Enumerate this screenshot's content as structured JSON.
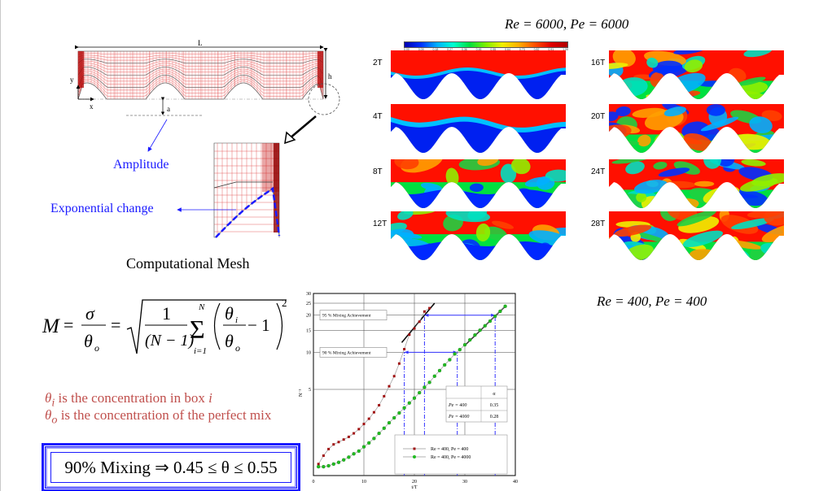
{
  "headings": {
    "high_re": "Re = 6000, Pe = 6000",
    "low_re": "Re = 400, Pe = 400",
    "mesh_caption": "Computational Mesh"
  },
  "mesh": {
    "length_label": "L",
    "height_label": "h",
    "x_label": "x",
    "y_label": "y",
    "amp_label": "a",
    "amplitude_callout": "Amplitude",
    "exponential_callout": "Exponential change"
  },
  "colorbar": {
    "ticks": [
      "0.00",
      "0.09",
      "0.18",
      "0.27",
      "0.36",
      "0.45",
      "0.55",
      "0.64",
      "0.73",
      "0.82",
      "0.91",
      "1.00"
    ]
  },
  "panels": [
    {
      "label": "2T"
    },
    {
      "label": "4T"
    },
    {
      "label": "8T"
    },
    {
      "label": "12T"
    },
    {
      "label": "16T"
    },
    {
      "label": "20T"
    },
    {
      "label": "24T"
    },
    {
      "label": "28T"
    }
  ],
  "equation": {
    "lhs": "M",
    "eq": "=",
    "sigma": "σ",
    "theta": "θ",
    "sub_o": "o",
    "sub_i": "i",
    "one": "1",
    "n_minus_1": "(N − 1)",
    "sum": "Σ",
    "sum_top": "N",
    "sum_bottom": "i=1",
    "minus_one": "− 1",
    "power": "2"
  },
  "notes": {
    "line1_sym": "θ",
    "line1_sub": "i",
    "line1_text": " is the concentration in box ",
    "line1_var": "i",
    "line2_sym": "θ",
    "line2_sub": "o",
    "line2_text": " is the concentration of the perfect mix"
  },
  "mixing_box": "90% Mixing ⇒ 0.45 ≤ θ ≤ 0.55",
  "chart_data": {
    "type": "scatter",
    "xlabel": "t/T",
    "ylabel": "N⁻¹",
    "xlim": [
      0,
      40
    ],
    "ylim": [
      1,
      30
    ],
    "yscale": "log",
    "xticks": [
      0,
      10,
      20,
      30,
      40
    ],
    "yticks": [
      5,
      10,
      15,
      20,
      25,
      30
    ],
    "grid": true,
    "legend_position": "bottom-right",
    "annotations": [
      "95 % Mixing Achievement",
      "90 % Mixing Achievement"
    ],
    "table": {
      "header": [
        "",
        "α"
      ],
      "rows": [
        [
          "Pe = 400",
          "0.35"
        ],
        [
          "Pe = 4000",
          "0.28"
        ]
      ]
    },
    "series": [
      {
        "name": "Re = 400, Pe = 400",
        "color": "#a01010",
        "x": [
          1,
          2,
          3,
          4,
          5,
          6,
          7,
          8,
          9,
          10,
          11,
          12,
          13,
          14,
          15,
          16,
          17,
          18,
          19,
          20,
          21,
          22,
          23
        ],
        "y": [
          1.24,
          1.45,
          1.64,
          1.79,
          1.87,
          1.96,
          2.06,
          2.2,
          2.38,
          2.62,
          2.89,
          3.26,
          3.72,
          4.4,
          5.3,
          6.4,
          8.1,
          10.6,
          13.9,
          15.6,
          17.7,
          21.4,
          22.8
        ]
      },
      {
        "name": "Re = 400, Pe = 4000",
        "color": "#22bb22",
        "x": [
          1,
          2,
          3,
          4,
          5,
          6,
          7,
          8,
          9,
          10,
          11,
          12,
          13,
          14,
          15,
          16,
          17,
          18,
          19,
          20,
          21,
          22,
          23,
          24,
          25,
          26,
          27,
          28,
          29,
          30,
          31,
          32,
          33,
          34,
          35,
          36,
          37,
          38
        ],
        "y": [
          1.18,
          1.18,
          1.2,
          1.24,
          1.28,
          1.34,
          1.41,
          1.5,
          1.58,
          1.71,
          1.84,
          2.0,
          2.2,
          2.42,
          2.68,
          2.94,
          3.22,
          3.54,
          3.88,
          4.25,
          4.7,
          5.2,
          5.7,
          6.4,
          7.1,
          7.9,
          8.7,
          9.7,
          10.5,
          11.5,
          12.6,
          13.8,
          15.1,
          16.4,
          17.9,
          19.6,
          21.5,
          23.6
        ]
      }
    ],
    "mixing_markers": {
      "pe400": {
        "t90": 18,
        "t95": 22
      },
      "pe4000": {
        "t90": 28.5,
        "t95": 36
      }
    }
  }
}
